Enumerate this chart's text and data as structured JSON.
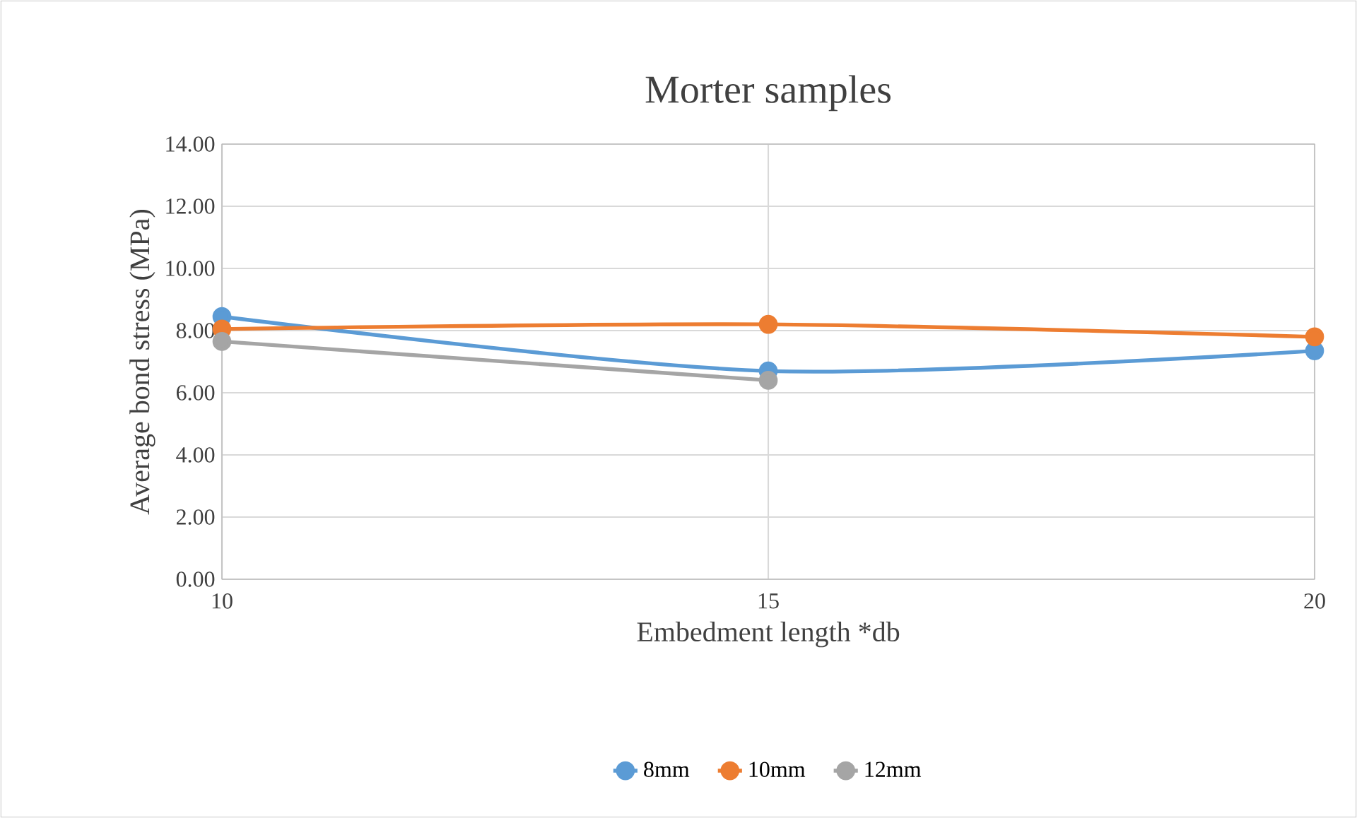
{
  "chart_data": {
    "type": "line",
    "title": "Morter samples",
    "xlabel": "Embedment length *db",
    "ylabel": "Average bond stress (MPa)",
    "x": [
      10,
      15,
      20
    ],
    "series": [
      {
        "name": "8mm",
        "color": "#5b9bd5",
        "values": [
          8.45,
          6.7,
          7.35
        ]
      },
      {
        "name": "10mm",
        "color": "#ed7d31",
        "values": [
          8.05,
          8.2,
          7.8
        ]
      },
      {
        "name": "12mm",
        "color": "#a5a5a5",
        "values": [
          7.65,
          6.4,
          null
        ]
      }
    ],
    "xlim": [
      10,
      20
    ],
    "xticks": [
      10,
      15,
      20
    ],
    "ylim": [
      0,
      14
    ],
    "yticks": [
      {
        "value": 0,
        "label": "0.00"
      },
      {
        "value": 2,
        "label": "2.00"
      },
      {
        "value": 4,
        "label": "4.00"
      },
      {
        "value": 6,
        "label": "6.00"
      },
      {
        "value": 8,
        "label": "8.00"
      },
      {
        "value": 10,
        "label": "10.00"
      },
      {
        "value": 12,
        "label": "12.00"
      },
      {
        "value": 14,
        "label": "14.00"
      }
    ],
    "grid": true,
    "legend": "bottom",
    "marker": "circle",
    "line_style": "solid"
  }
}
